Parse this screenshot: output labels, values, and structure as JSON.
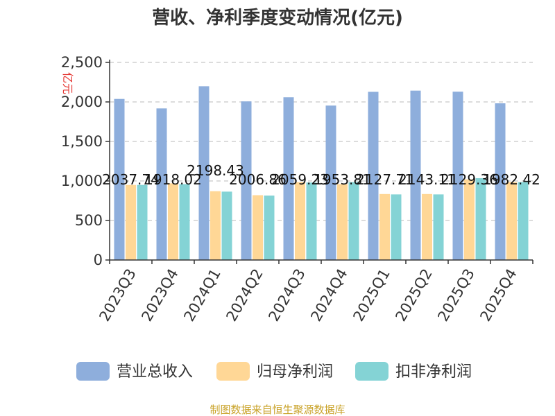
{
  "chart_data": {
    "type": "bar",
    "title": "营收、净利季度变动情况(亿元)",
    "ylabel": "亿元",
    "ylim": [
      0,
      2500
    ],
    "yticks": [
      "0",
      "500",
      "1,000",
      "1,500",
      "2,000",
      "2,500"
    ],
    "ytick_values": [
      0,
      500,
      1000,
      1500,
      2000,
      2500
    ],
    "grid": true,
    "legend": "bottom",
    "categories": [
      "2023Q3",
      "2023Q4",
      "2024Q1",
      "2024Q2",
      "2024Q3",
      "2024Q4",
      "2025Q1",
      "2025Q2",
      "2025Q3",
      "2025Q4"
    ],
    "series": [
      {
        "name": "营业总收入",
        "color": "#8eaedc",
        "values": [
          2037.74,
          1918.02,
          2198.43,
          2006.86,
          2059.23,
          1953.81,
          2127.71,
          2143.11,
          2129.36,
          1982.42
        ],
        "labels": [
          "2037.74",
          "1918.02",
          "2198.43",
          "2006.86",
          "2059.23",
          "1953.81",
          "2127.71",
          "2143.11",
          "2129.36",
          "1982.42"
        ]
      },
      {
        "name": "归母净利润",
        "color": "#ffd796",
        "values": [
          950,
          970,
          870,
          820,
          985,
          960,
          835,
          835,
          1020,
          985
        ],
        "labels": [
          "",
          "",
          "",
          "",
          "",
          "",
          "",
          "",
          "",
          ""
        ]
      },
      {
        "name": "扣非净利润",
        "color": "#84d3d5",
        "values": [
          950,
          960,
          865,
          815,
          980,
          985,
          830,
          830,
          1035,
          985
        ],
        "labels": [
          "",
          "",
          "",
          "",
          "",
          "",
          "",
          "",
          "",
          ""
        ]
      }
    ]
  },
  "footer": {
    "source": "制图数据来自恒生聚源数据库"
  }
}
